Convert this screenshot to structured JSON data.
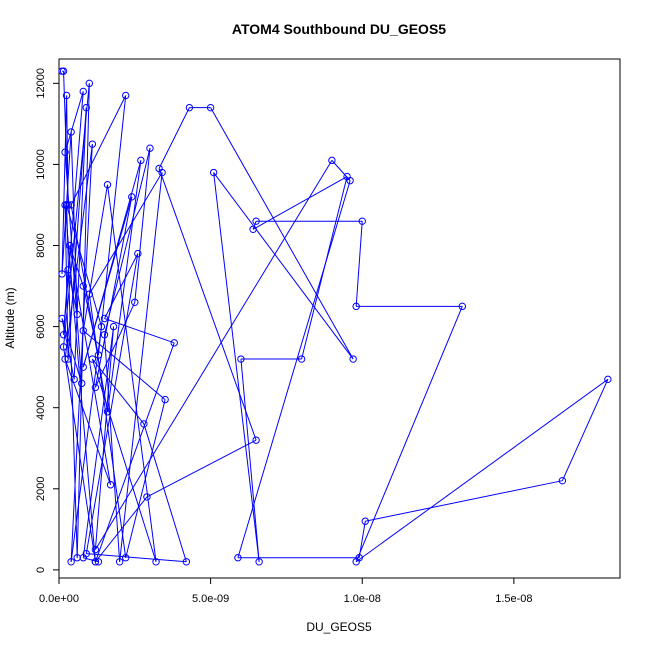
{
  "chart_data": {
    "type": "line",
    "title": "ATOM4 Southbound DU_GEOS5",
    "xlabel": "DU_GEOS5",
    "ylabel": "Altitude (m)",
    "xlim": [
      0,
      1.85e-08
    ],
    "ylim": [
      -200,
      12600
    ],
    "xticks": [
      0,
      5e-09,
      1e-08,
      1.5e-08
    ],
    "xtick_labels": [
      "0.0e+00",
      "5.0e-09",
      "1.0e-08",
      "1.5e-08"
    ],
    "yticks": [
      0,
      2000,
      4000,
      6000,
      8000,
      10000,
      12000
    ],
    "ytick_labels": [
      "0",
      "2000",
      "4000",
      "6000",
      "8000",
      "10000",
      "12000"
    ],
    "grid": false,
    "legend": "none",
    "line_color": "#0000ff",
    "marker": "open-circle",
    "series": [
      {
        "x": [
          1e-10,
          1.5e-10,
          3e-10,
          2.5e-10,
          1e-10,
          4e-10,
          6e-10,
          3e-10,
          1.5e-10,
          8e-10,
          2e-10,
          7.5e-10,
          1e-10,
          5e-10,
          9e-10,
          3e-10,
          2e-10,
          1.2e-09,
          1.5e-10,
          1e-09,
          6e-10,
          2.5e-10,
          1.4e-09,
          4e-10,
          1.1e-09,
          2e-10,
          1.7e-09,
          3.5e-10,
          8e-10,
          1.3e-09,
          2.2e-09,
          4e-10,
          1.6e-09,
          2.7e-09,
          8e-10,
          2.4e-09,
          1.2e-09,
          2.5e-09,
          3e-09,
          1.5e-09,
          2e-09,
          3.4e-09,
          1e-09,
          2.2e-09,
          3.5e-09,
          8e-10,
          1.6e-09,
          3.2e-09,
          1.1e-09,
          2.8e-09,
          4.2e-09,
          9e-10,
          2.6e-09,
          1.5e-09,
          3.8e-09,
          1.2e-09,
          2.9e-09,
          6.5e-09,
          3.3e-09,
          4.3e-09,
          5e-09,
          9.7e-09,
          5.1e-09,
          6.6e-09,
          6e-09,
          8e-09,
          9.5e-09,
          6.4e-09,
          6.5e-09,
          1e-08,
          9.8e-09,
          1.33e-08,
          9.8e-09,
          1.81e-08,
          1.66e-08,
          1.01e-08,
          9.9e-09,
          5.9e-09,
          9.6e-09,
          9e-09,
          1.2e-09,
          1.8e-09,
          8e-10,
          1.3e-09
        ],
        "y": [
          12300,
          12300,
          9000,
          11700,
          7300,
          10800,
          6300,
          7400,
          5800,
          11800,
          10300,
          4600,
          6200,
          4700,
          11400,
          5200,
          9000,
          200,
          5500,
          12000,
          300,
          9000,
          6000,
          200,
          10500,
          5200,
          2100,
          8000,
          7000,
          5300,
          11700,
          9000,
          3900,
          10100,
          5000,
          9200,
          4500,
          6600,
          10400,
          5800,
          200,
          9800,
          6800,
          300,
          4200,
          5900,
          9500,
          200,
          5200,
          3600,
          200,
          400,
          7800,
          6200,
          5600,
          200,
          1800,
          3200,
          9900,
          11400,
          11400,
          5200,
          9800,
          200,
          5200,
          5200,
          9700,
          8400,
          8600,
          8600,
          6500,
          6500,
          200,
          4700,
          2200,
          1200,
          300,
          300,
          9600,
          10100,
          500,
          6000,
          300,
          200
        ]
      }
    ]
  }
}
